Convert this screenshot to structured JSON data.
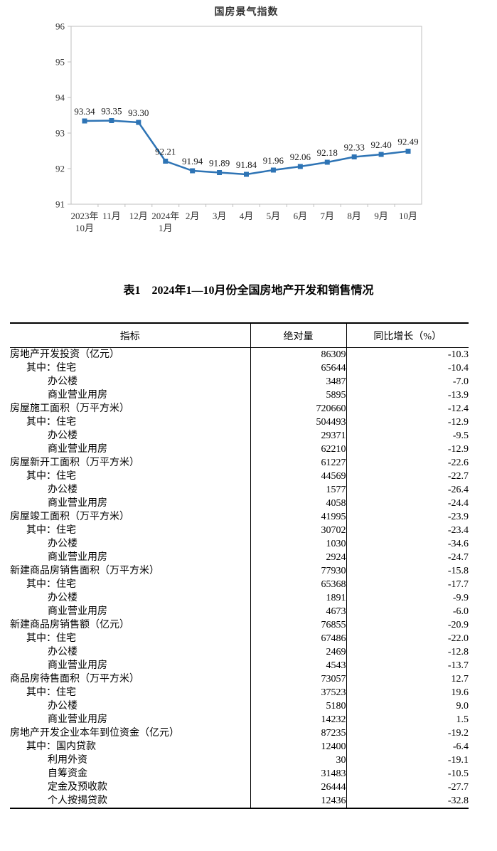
{
  "chart_data": {
    "type": "line",
    "title": "国房景气指数",
    "categories": [
      "2023年\n10月",
      "11月",
      "12月",
      "2024年\n1月",
      "2月",
      "3月",
      "4月",
      "5月",
      "6月",
      "7月",
      "8月",
      "9月",
      "10月"
    ],
    "values": [
      93.34,
      93.35,
      93.3,
      92.21,
      91.94,
      91.89,
      91.84,
      91.96,
      92.06,
      92.18,
      92.33,
      92.4,
      92.49
    ],
    "ylim": [
      91,
      96
    ],
    "yticks": [
      91,
      92,
      93,
      94,
      95,
      96
    ],
    "grid": false,
    "legend": "none",
    "line_color": "#2E74B5",
    "axis_color": "#BFBFBF",
    "marker": "square",
    "data_labels": true
  },
  "table": {
    "title": "表1　2024年1—10月份全国房地产开发和销售情况",
    "columns": [
      "指标",
      "绝对量",
      "同比增长（%）"
    ],
    "rows": [
      {
        "label": "房地产开发投资（亿元）",
        "value": "86309",
        "growth": "-10.3",
        "level": 0
      },
      {
        "label": "其中：住宅",
        "value": "65644",
        "growth": "-10.4",
        "level": 1
      },
      {
        "label": "办公楼",
        "value": "3487",
        "growth": "-7.0",
        "level": 2
      },
      {
        "label": "商业营业用房",
        "value": "5895",
        "growth": "-13.9",
        "level": 2
      },
      {
        "label": "房屋施工面积（万平方米）",
        "value": "720660",
        "growth": "-12.4",
        "level": 0
      },
      {
        "label": "其中：住宅",
        "value": "504493",
        "growth": "-12.9",
        "level": 1
      },
      {
        "label": "办公楼",
        "value": "29371",
        "growth": "-9.5",
        "level": 2
      },
      {
        "label": "商业营业用房",
        "value": "62210",
        "growth": "-12.9",
        "level": 2
      },
      {
        "label": "房屋新开工面积（万平方米）",
        "value": "61227",
        "growth": "-22.6",
        "level": 0
      },
      {
        "label": "其中：住宅",
        "value": "44569",
        "growth": "-22.7",
        "level": 1
      },
      {
        "label": "办公楼",
        "value": "1577",
        "growth": "-26.4",
        "level": 2
      },
      {
        "label": "商业营业用房",
        "value": "4058",
        "growth": "-24.4",
        "level": 2
      },
      {
        "label": "房屋竣工面积（万平方米）",
        "value": "41995",
        "growth": "-23.9",
        "level": 0
      },
      {
        "label": "其中：住宅",
        "value": "30702",
        "growth": "-23.4",
        "level": 1
      },
      {
        "label": "办公楼",
        "value": "1030",
        "growth": "-34.6",
        "level": 2
      },
      {
        "label": "商业营业用房",
        "value": "2924",
        "growth": "-24.7",
        "level": 2
      },
      {
        "label": "新建商品房销售面积（万平方米）",
        "value": "77930",
        "growth": "-15.8",
        "level": 0
      },
      {
        "label": "其中：住宅",
        "value": "65368",
        "growth": "-17.7",
        "level": 1
      },
      {
        "label": "办公楼",
        "value": "1891",
        "growth": "-9.9",
        "level": 2
      },
      {
        "label": "商业营业用房",
        "value": "4673",
        "growth": "-6.0",
        "level": 2
      },
      {
        "label": "新建商品房销售额（亿元）",
        "value": "76855",
        "growth": "-20.9",
        "level": 0
      },
      {
        "label": "其中：住宅",
        "value": "67486",
        "growth": "-22.0",
        "level": 1
      },
      {
        "label": "办公楼",
        "value": "2469",
        "growth": "-12.8",
        "level": 2
      },
      {
        "label": "商业营业用房",
        "value": "4543",
        "growth": "-13.7",
        "level": 2
      },
      {
        "label": "商品房待售面积（万平方米）",
        "value": "73057",
        "growth": "12.7",
        "level": 0
      },
      {
        "label": "其中：住宅",
        "value": "37523",
        "growth": "19.6",
        "level": 1
      },
      {
        "label": "办公楼",
        "value": "5180",
        "growth": "9.0",
        "level": 2
      },
      {
        "label": "商业营业用房",
        "value": "14232",
        "growth": "1.5",
        "level": 2
      },
      {
        "label": "房地产开发企业本年到位资金（亿元）",
        "value": "87235",
        "growth": "-19.2",
        "level": 0
      },
      {
        "label": "其中：国内贷款",
        "value": "12400",
        "growth": "-6.4",
        "level": 1
      },
      {
        "label": "利用外资",
        "value": "30",
        "growth": "-19.1",
        "level": 2
      },
      {
        "label": "自筹资金",
        "value": "31483",
        "growth": "-10.5",
        "level": 2
      },
      {
        "label": "定金及预收款",
        "value": "26444",
        "growth": "-27.7",
        "level": 2
      },
      {
        "label": "个人按揭贷款",
        "value": "12436",
        "growth": "-32.8",
        "level": 2
      }
    ]
  }
}
